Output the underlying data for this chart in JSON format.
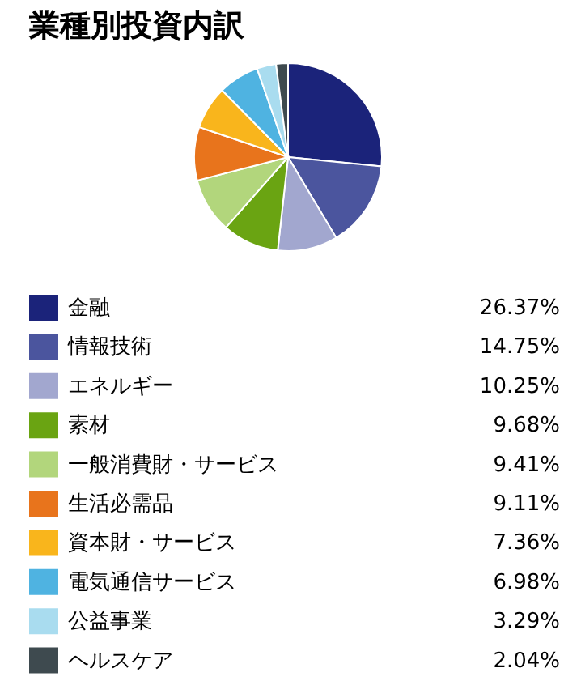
{
  "chart_data": {
    "type": "pie",
    "title": "業種別投資内訳",
    "categories": [
      "金融",
      "情報技術",
      "エネルギー",
      "素材",
      "一般消費財・サービス",
      "生活必需品",
      "資本財・サービス",
      "電気通信サービス",
      "公益事業",
      "ヘルスケア"
    ],
    "values": [
      26.37,
      14.75,
      10.25,
      9.68,
      9.41,
      9.11,
      7.36,
      6.98,
      3.29,
      2.04
    ],
    "value_labels": [
      "26.37%",
      "14.75%",
      "10.25%",
      "9.68%",
      "9.41%",
      "9.11%",
      "7.36%",
      "6.98%",
      "3.29%",
      "2.04%"
    ],
    "colors": [
      "#1b237a",
      "#4b559e",
      "#a2a7cf",
      "#6aa412",
      "#b2d67c",
      "#e8741c",
      "#f9b51c",
      "#4fb3e1",
      "#a9dcef",
      "#3e4a4f"
    ],
    "legend": "bottom"
  }
}
